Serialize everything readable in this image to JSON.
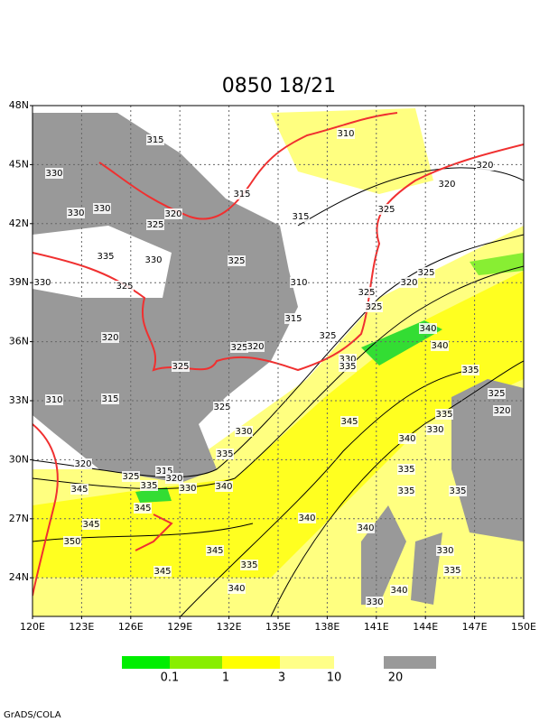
{
  "title": "0850 18/21",
  "lat_labels": [
    "48N",
    "45N",
    "42N",
    "39N",
    "36N",
    "33N",
    "30N",
    "27N",
    "24N"
  ],
  "lon_labels": [
    "120E",
    "123E",
    "126E",
    "129E",
    "132E",
    "135E",
    "138E",
    "141E",
    "144E",
    "147E",
    "150E"
  ],
  "contour_labels": [
    "315",
    "310",
    "320",
    "330",
    "315",
    "320",
    "330",
    "330",
    "320",
    "325",
    "315",
    "325",
    "335",
    "330",
    "325",
    "325",
    "330",
    "325",
    "310",
    "320",
    "325",
    "325",
    "315",
    "340",
    "320",
    "325",
    "325",
    "320",
    "340",
    "330",
    "335",
    "325",
    "335",
    "310",
    "315",
    "325",
    "325",
    "320",
    "345",
    "335",
    "330",
    "330",
    "340",
    "335",
    "320",
    "335",
    "315",
    "325",
    "320",
    "335",
    "330",
    "340",
    "345",
    "335",
    "335",
    "345",
    "340",
    "345",
    "340",
    "350",
    "345",
    "330",
    "335",
    "335",
    "345",
    "340",
    "340",
    "330"
  ],
  "legend": [
    "0.1",
    "1",
    "3",
    "10",
    "20"
  ],
  "footer": "GrADS/COLA"
}
